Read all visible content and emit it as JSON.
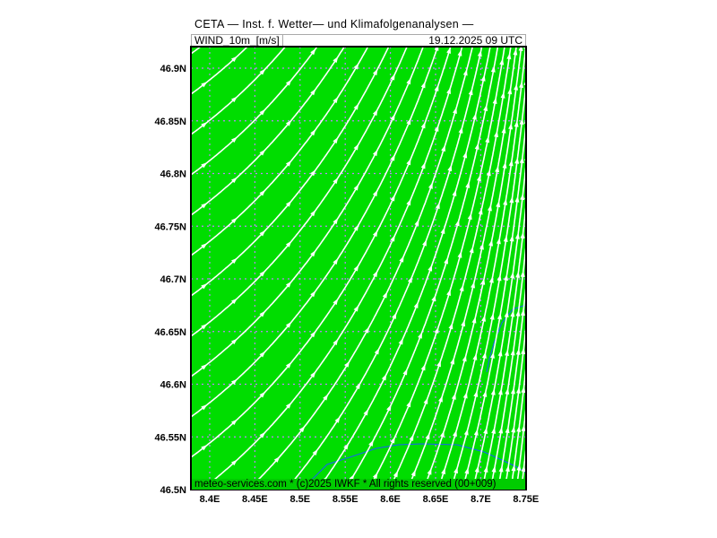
{
  "header": {
    "title": "CETA — Inst. f. Wetter— und Klimafolgenanalysen —",
    "parameter": "WIND_10m_[m/s]",
    "datetime": "19.12.2025 09 UTC"
  },
  "map": {
    "type": "streamlines",
    "field_color": "#00dd00",
    "streamline_color": "#ffffff",
    "coast_color": "#1a5cff",
    "grid_color": "#c080ff",
    "lon_ticks": [
      "8.4E",
      "8.45E",
      "8.5E",
      "8.55E",
      "8.6E",
      "8.65E",
      "8.7E",
      "8.75E"
    ],
    "lat_ticks": [
      "46.9N",
      "46.85N",
      "46.8N",
      "46.75N",
      "46.7N",
      "46.65N",
      "46.6N",
      "46.55N",
      "46.5N"
    ]
  },
  "footer": {
    "text": "meteo-services.com * (c)2025 IWKF * All rights reserved (00+009)"
  }
}
